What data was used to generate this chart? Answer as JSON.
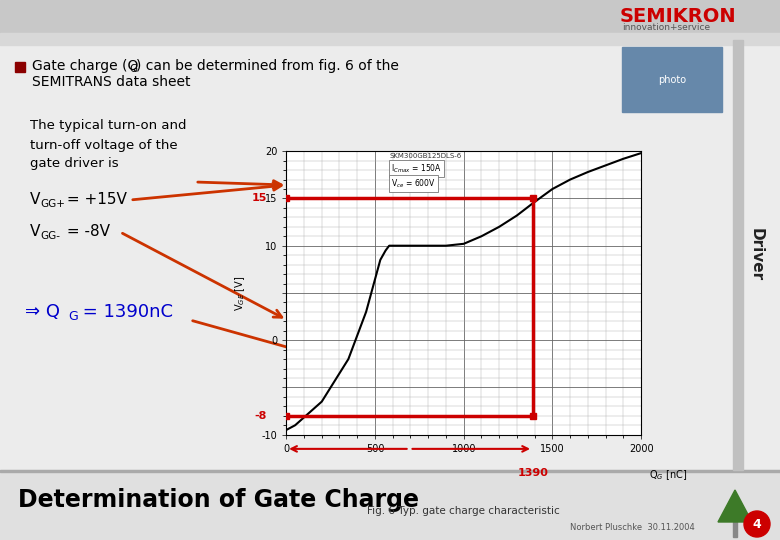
{
  "bg_color": "#ececec",
  "semikron_red": "#cc0000",
  "bullet_color": "#8B0000",
  "arrow_color": "#cc3300",
  "result_color": "#0000cc",
  "red_box_color": "#cc0000",
  "driver_text": "Driver",
  "graph_caption": "Fig. 6 Typ. gate charge characteristic",
  "bottom_title": "Determination of Gate Charge",
  "footer_text": "Norbert Pluschke  30.11.2004",
  "page_num": "4",
  "qg_x": [
    0,
    50,
    200,
    350,
    450,
    530,
    560,
    580,
    600,
    700,
    800,
    900,
    1000,
    1100,
    1200,
    1300,
    1390,
    1500,
    1600,
    1700,
    1800,
    1900,
    2000
  ],
  "qg_y": [
    -9.5,
    -9.0,
    -6.5,
    -2.0,
    3.0,
    8.5,
    9.5,
    10.0,
    10.0,
    10.0,
    10.0,
    10.0,
    10.2,
    11.0,
    12.0,
    13.2,
    14.5,
    16.0,
    17.0,
    17.8,
    18.5,
    19.2,
    19.8
  ]
}
